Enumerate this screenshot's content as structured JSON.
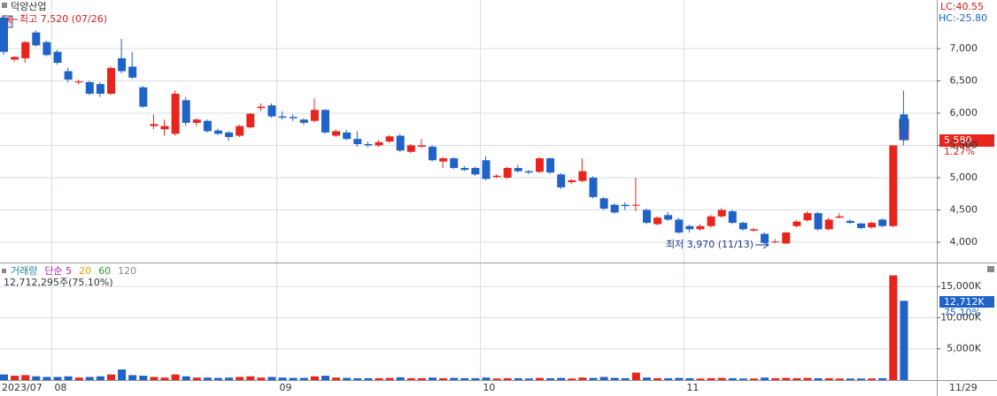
{
  "chart_data": {
    "type": "candlestick",
    "title": "덕양산업",
    "high_note": "최고 7,520 (07/26)",
    "low_note": "최저 3,970 (11/13)",
    "lc": "LC:40.55",
    "hc": "HC:-25.80",
    "last_price_label": "5,580",
    "last_change": "1.27%",
    "markers": [
      "S",
      "B"
    ],
    "up_color": "#e8251c",
    "down_color": "#1f62c8",
    "ohlc": [
      [
        7480,
        7520,
        6900,
        6950
      ],
      [
        6830,
        6880,
        6800,
        6870
      ],
      [
        6850,
        7120,
        6780,
        7100
      ],
      [
        7250,
        7280,
        7030,
        7050
      ],
      [
        7100,
        7120,
        6880,
        6900
      ],
      [
        6950,
        6980,
        6750,
        6780
      ],
      [
        6650,
        6700,
        6480,
        6520
      ],
      [
        6480,
        6520,
        6450,
        6490
      ],
      [
        6480,
        6500,
        6280,
        6300
      ],
      [
        6450,
        6480,
        6250,
        6300
      ],
      [
        6300,
        6720,
        6280,
        6700
      ],
      [
        6850,
        7150,
        6620,
        6650
      ],
      [
        6720,
        6950,
        6530,
        6550
      ],
      [
        6400,
        6420,
        6080,
        6100
      ],
      [
        5800,
        5980,
        5750,
        5830
      ],
      [
        5750,
        5900,
        5650,
        5800
      ],
      [
        5680,
        6350,
        5650,
        6300
      ],
      [
        6200,
        6250,
        5800,
        5850
      ],
      [
        5850,
        5920,
        5800,
        5900
      ],
      [
        5880,
        5900,
        5700,
        5720
      ],
      [
        5730,
        5760,
        5660,
        5680
      ],
      [
        5700,
        5720,
        5570,
        5630
      ],
      [
        5650,
        5820,
        5630,
        5800
      ],
      [
        5780,
        6000,
        5760,
        5990
      ],
      [
        6080,
        6150,
        6030,
        6100
      ],
      [
        6120,
        6150,
        5930,
        5950
      ],
      [
        5950,
        6030,
        5900,
        5930
      ],
      [
        5940,
        5980,
        5880,
        5920
      ],
      [
        5900,
        5920,
        5820,
        5850
      ],
      [
        5880,
        6230,
        5860,
        6050
      ],
      [
        6050,
        6060,
        5680,
        5700
      ],
      [
        5650,
        5750,
        5630,
        5720
      ],
      [
        5700,
        5740,
        5580,
        5600
      ],
      [
        5600,
        5720,
        5480,
        5520
      ],
      [
        5520,
        5560,
        5470,
        5500
      ],
      [
        5500,
        5580,
        5480,
        5550
      ],
      [
        5560,
        5660,
        5540,
        5640
      ],
      [
        5650,
        5680,
        5400,
        5420
      ],
      [
        5400,
        5520,
        5380,
        5500
      ],
      [
        5480,
        5600,
        5460,
        5500
      ],
      [
        5480,
        5500,
        5250,
        5270
      ],
      [
        5250,
        5320,
        5150,
        5300
      ],
      [
        5300,
        5320,
        5130,
        5150
      ],
      [
        5150,
        5180,
        5100,
        5120
      ],
      [
        5150,
        5170,
        5030,
        5050
      ],
      [
        5270,
        5330,
        4960,
        4980
      ],
      [
        5010,
        5050,
        4990,
        5030
      ],
      [
        5000,
        5170,
        4980,
        5150
      ],
      [
        5150,
        5200,
        5080,
        5100
      ],
      [
        5100,
        5120,
        5050,
        5080
      ],
      [
        5090,
        5320,
        5070,
        5300
      ],
      [
        5300,
        5310,
        5060,
        5080
      ],
      [
        5050,
        5070,
        4820,
        4850
      ],
      [
        4930,
        4980,
        4900,
        4960
      ],
      [
        4950,
        5300,
        4930,
        5100
      ],
      [
        5000,
        5020,
        4680,
        4700
      ],
      [
        4680,
        4700,
        4500,
        4520
      ],
      [
        4580,
        4600,
        4440,
        4460
      ],
      [
        4580,
        4620,
        4500,
        4560
      ],
      [
        4570,
        5000,
        4480,
        4580
      ],
      [
        4500,
        4520,
        4280,
        4300
      ],
      [
        4280,
        4400,
        4260,
        4380
      ],
      [
        4420,
        4470,
        4330,
        4350
      ],
      [
        4350,
        4380,
        4130,
        4150
      ],
      [
        4250,
        4270,
        4150,
        4200
      ],
      [
        4200,
        4280,
        4180,
        4250
      ],
      [
        4250,
        4420,
        4230,
        4400
      ],
      [
        4400,
        4530,
        4380,
        4500
      ],
      [
        4480,
        4500,
        4280,
        4300
      ],
      [
        4300,
        4320,
        4180,
        4200
      ],
      [
        4180,
        4220,
        4160,
        4200
      ],
      [
        4130,
        4150,
        3970,
        3990
      ],
      [
        4000,
        4050,
        3980,
        4010
      ],
      [
        3980,
        4160,
        3970,
        4150
      ],
      [
        4250,
        4340,
        4230,
        4320
      ],
      [
        4340,
        4480,
        4320,
        4450
      ],
      [
        4450,
        4470,
        4180,
        4200
      ],
      [
        4200,
        4380,
        4180,
        4350
      ],
      [
        4380,
        4450,
        4370,
        4400
      ],
      [
        4330,
        4360,
        4280,
        4300
      ],
      [
        4290,
        4300,
        4200,
        4220
      ],
      [
        4230,
        4320,
        4210,
        4300
      ],
      [
        4350,
        4370,
        4230,
        4250
      ],
      [
        4250,
        5500,
        4230,
        5500
      ],
      [
        5980,
        6350,
        5500,
        5580
      ]
    ],
    "ylim": [
      3685,
      7753
    ],
    "yticks": [
      {
        "value": 4000,
        "label": "4,000"
      },
      {
        "value": 4500,
        "label": "4,500"
      },
      {
        "value": 5000,
        "label": "5,000"
      },
      {
        "value": 5500,
        "label": "5,500"
      },
      {
        "value": 6000,
        "label": "6,000"
      },
      {
        "value": 6500,
        "label": "6,500"
      },
      {
        "value": 7000,
        "label": "7,000"
      }
    ],
    "xticks": [
      {
        "index": 5,
        "label": "08"
      },
      {
        "index": 26,
        "label": "09"
      },
      {
        "index": 45,
        "label": "10"
      },
      {
        "index": 64,
        "label": "11"
      }
    ],
    "first_date": "2023/07",
    "last_date": "11/29",
    "volume": {
      "legend": [
        "거래량",
        "단순 5",
        "20",
        "60",
        "120"
      ],
      "legend_colors": [
        "#1a8a9a",
        "#b020b0",
        "#e0a000",
        "#2a9a2a",
        "#888888"
      ],
      "summary": "12,712,295주(75.10%)",
      "last_label": "12,712K",
      "last_ratio": "75.10%",
      "values": [
        900,
        700,
        800,
        600,
        500,
        500,
        600,
        400,
        500,
        600,
        900,
        1700,
        800,
        700,
        500,
        400,
        900,
        600,
        400,
        400,
        350,
        400,
        500,
        600,
        400,
        500,
        400,
        350,
        350,
        600,
        700,
        400,
        350,
        300,
        300,
        300,
        350,
        450,
        300,
        300,
        400,
        300,
        350,
        300,
        300,
        400,
        250,
        300,
        300,
        250,
        350,
        300,
        350,
        250,
        400,
        350,
        500,
        350,
        300,
        1200,
        400,
        300,
        300,
        350,
        300,
        250,
        300,
        350,
        300,
        250,
        250,
        400,
        300,
        350,
        300,
        350,
        300,
        300,
        250,
        250,
        250,
        250,
        300,
        16800,
        12712
      ],
      "ylim": [
        0,
        18714
      ],
      "yticks": [
        {
          "value": 5000,
          "label": "5,000K"
        },
        {
          "value": 10000,
          "label": "10,000K"
        },
        {
          "value": 15000,
          "label": "15,000K"
        }
      ]
    }
  }
}
